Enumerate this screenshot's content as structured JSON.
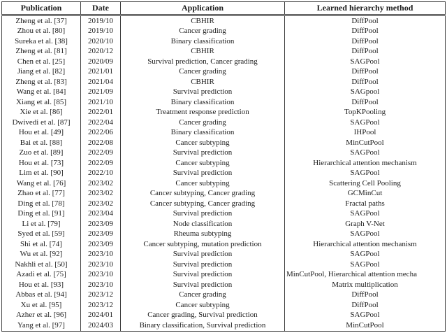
{
  "table": {
    "headers": [
      "Publication",
      "Date",
      "Application",
      "Learned hierarchy method"
    ],
    "rows": [
      {
        "publication": "Zheng et al. [37]",
        "date": "2019/10",
        "application": "CBHIR",
        "method": "DiffPool"
      },
      {
        "publication": "Zhou et al. [80]",
        "date": "2019/10",
        "application": "Cancer grading",
        "method": "DiffPool"
      },
      {
        "publication": "Sureka et al. [38]",
        "date": "2020/10",
        "application": "Binary classification",
        "method": "DiffPool"
      },
      {
        "publication": "Zheng et al. [81]",
        "date": "2020/12",
        "application": "CBHIR",
        "method": "DiffPool"
      },
      {
        "publication": "Chen et al. [25]",
        "date": "2020/09",
        "application": "Survival prediction, Cancer grading",
        "method": "SAGPool"
      },
      {
        "publication": "Jiang et al. [82]",
        "date": "2021/01",
        "application": "Cancer grading",
        "method": "DiffPool"
      },
      {
        "publication": "Zheng et al. [83]",
        "date": "2021/04",
        "application": "CBHIR",
        "method": "DiffPool"
      },
      {
        "publication": "Wang et al. [84]",
        "date": "2021/09",
        "application": "Survival prediction",
        "method": "SAGpool"
      },
      {
        "publication": "Xiang et al. [85]",
        "date": "2021/10",
        "application": "Binary classification",
        "method": "DiffPool"
      },
      {
        "publication": "Xie et al. [86]",
        "date": "2022/01",
        "application": "Treatment response prediction",
        "method": "TopKPooling"
      },
      {
        "publication": "Dwivedi et al. [87]",
        "date": "2022/04",
        "application": "Cancer grading",
        "method": "SAGPool"
      },
      {
        "publication": "Hou et al. [49]",
        "date": "2022/06",
        "application": "Binary classification",
        "method": "IHPool"
      },
      {
        "publication": "Bai et al. [88]",
        "date": "2022/08",
        "application": "Cancer subtyping",
        "method": "MinCutPool"
      },
      {
        "publication": "Zuo et al. [89]",
        "date": "2022/09",
        "application": "Survival prediction",
        "method": "SAGPool"
      },
      {
        "publication": "Hou et al. [73]",
        "date": "2022/09",
        "application": "Cancer subtyping",
        "method": "Hierarchical attention mechanism"
      },
      {
        "publication": "Lim et al. [90]",
        "date": "2022/10",
        "application": "Survival prediction",
        "method": "SAGPool"
      },
      {
        "publication": "Wang et al. [76]",
        "date": "2023/02",
        "application": "Cancer subtyping",
        "method": "Scattering Cell Pooling"
      },
      {
        "publication": "Zhao et al. [77]",
        "date": "2023/02",
        "application": "Cancer subtyping, Cancer grading",
        "method": "GCMinCut"
      },
      {
        "publication": "Ding et al. [78]",
        "date": "2023/02",
        "application": "Cancer subtyping, Cancer grading",
        "method": "Fractal paths"
      },
      {
        "publication": "Ding et al. [91]",
        "date": "2023/04",
        "application": "Survival prediction",
        "method": "SAGPool"
      },
      {
        "publication": "Li et al. [79]",
        "date": "2023/09",
        "application": "Node classification",
        "method": "Graph V-Net"
      },
      {
        "publication": "Syed et al. [59]",
        "date": "2023/09",
        "application": "Rheuma subtyping",
        "method": "SAGPool"
      },
      {
        "publication": "Shi et al. [74]",
        "date": "2023/09",
        "application": "Cancer subtyping, mutation prediction",
        "method": "Hierarchical attention mechanism"
      },
      {
        "publication": "Wu et al. [92]",
        "date": "2023/10",
        "application": "Survival prediction",
        "method": "SAGPool"
      },
      {
        "publication": "Nakhli et al. [50]",
        "date": "2023/10",
        "application": "Survival prediction",
        "method": "SAGPool"
      },
      {
        "publication": "Azadi et al. [75]",
        "date": "2023/10",
        "application": "Survival prediction",
        "method": "MinCutPool, Hierarchical attention mecha"
      },
      {
        "publication": "Hou et al. [93]",
        "date": "2023/10",
        "application": "Survival prediction",
        "method": "Matrix multiplication"
      },
      {
        "publication": "Abbas et al. [94]",
        "date": "2023/12",
        "application": "Cancer grading",
        "method": "DiffPool"
      },
      {
        "publication": "Xu et al. [95]",
        "date": "2023/12",
        "application": "Cancer subtyping",
        "method": "DiffPool"
      },
      {
        "publication": "Azher et al. [96]",
        "date": "2024/01",
        "application": "Cancer grading, Survival prediction",
        "method": "SAGPool"
      },
      {
        "publication": "Yang et al. [97]",
        "date": "2024/03",
        "application": "Binary classification, Survival prediction",
        "method": "MinCutPool"
      }
    ]
  },
  "colors": {
    "text": "#1c1c1c",
    "border": "#3c3c3c",
    "background": "#ffffff"
  }
}
